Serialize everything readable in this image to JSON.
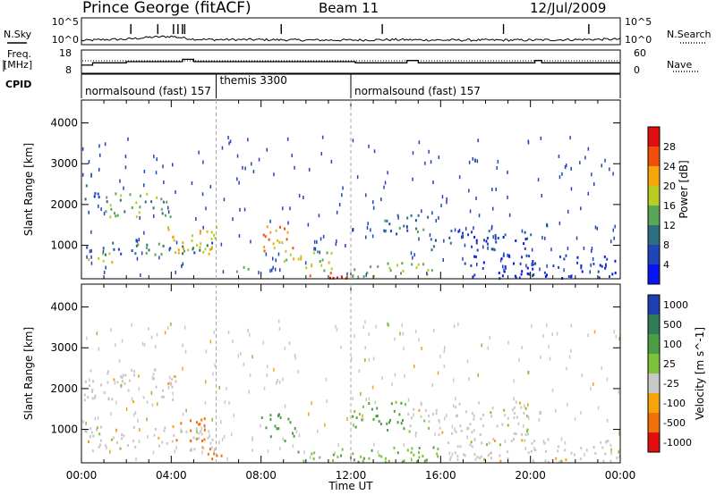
{
  "header": {
    "station": "Prince George (fitACF)",
    "beam": "Beam 11",
    "date": "12/Jul/2009"
  },
  "noise_panel": {
    "left_label": "N.Sky",
    "right_label": "N.Search",
    "left_ticks": [
      "10^5",
      "10^0"
    ],
    "right_ticks": [
      "10^5",
      "10^0"
    ]
  },
  "freq_panel": {
    "left_label_1": "Freq.",
    "left_label_2": "[MHz]",
    "right_label": "Nave",
    "left_ticks": [
      "18",
      "8"
    ],
    "right_ticks": [
      "60",
      "0"
    ]
  },
  "cpid": {
    "label": "CPID",
    "segments": [
      {
        "name": "normalsound (fast) 157",
        "start": 0,
        "end": 6
      },
      {
        "name": "themis 3300",
        "start": 6,
        "end": 12
      },
      {
        "name": "normalsound (fast) 157",
        "start": 12,
        "end": 24
      }
    ]
  },
  "x_axis": {
    "label": "Time UT",
    "ticks": [
      "00:00",
      "04:00",
      "08:00",
      "12:00",
      "16:00",
      "20:00",
      "00:00"
    ],
    "tick_hours": [
      0,
      4,
      8,
      12,
      16,
      20,
      24
    ]
  },
  "y_axis": {
    "label": "Slant Range [km]",
    "ticks": [
      "1000",
      "2000",
      "3000",
      "4000"
    ],
    "tick_values": [
      1000,
      2000,
      3000,
      4000
    ],
    "range": [
      180,
      4560
    ]
  },
  "power_colorbar": {
    "label": "Power [dB]",
    "ticks": [
      "4",
      "8",
      "12",
      "16",
      "20",
      "24",
      "28"
    ],
    "colors": [
      "#0a16f0",
      "#1f45b8",
      "#2f6e80",
      "#58a656",
      "#b8cc22",
      "#f6a60c",
      "#f0500c",
      "#e00f0f"
    ]
  },
  "velocity_colorbar": {
    "label": "Velocity [m s^-1]",
    "ticks": [
      "1000",
      "500",
      "100",
      "25",
      "-25",
      "-100",
      "-500",
      "-1000"
    ],
    "colors": [
      "#1f3fb0",
      "#2f7c56",
      "#4f9c46",
      "#7cc23a",
      "#c8c8c8",
      "#f6a40c",
      "#f0700c",
      "#e01010"
    ]
  },
  "chart_data": [
    {
      "type": "line",
      "title": "N.Sky / N.Search",
      "x": [
        0,
        1,
        2,
        3,
        4,
        5,
        6,
        8,
        10,
        12,
        14,
        16,
        18,
        20,
        22,
        24
      ],
      "series": [
        {
          "name": "N.Sky",
          "values": [
            0.5,
            0.7,
            0.8,
            1.2,
            1.4,
            0.8,
            0.7,
            0.7,
            0.6,
            0.6,
            0.7,
            0.6,
            0.6,
            0.6,
            0.7,
            0.8
          ]
        }
      ]
    },
    {
      "type": "line",
      "title": "Freq. / Nave",
      "x": [
        0,
        0.5,
        2,
        4.5,
        5,
        12,
        12.2,
        14.5,
        15,
        18,
        20.2,
        20.5,
        24
      ],
      "series": [
        {
          "name": "Freq. [MHz]",
          "values": [
            11.5,
            12.5,
            13,
            14,
            13,
            13,
            12.5,
            13.5,
            12.5,
            12.5,
            13.5,
            12.5,
            12.5
          ]
        }
      ]
    },
    {
      "type": "heatmap",
      "title": "Power [dB]",
      "x_unit": "hours UT",
      "y_unit": "km",
      "features": [
        {
          "t0": 0.1,
          "t1": 1,
          "r0": 2100,
          "r1": 2500,
          "power": 6
        },
        {
          "t0": 1,
          "t1": 4.2,
          "r0": 1700,
          "r1": 2300,
          "power": 14
        },
        {
          "t0": 0.1,
          "t1": 6,
          "r0": 800,
          "r1": 1100,
          "power": 10
        },
        {
          "t0": 0.1,
          "t1": 1.5,
          "r0": 600,
          "r1": 850,
          "power": 18
        },
        {
          "t0": 3.8,
          "t1": 6,
          "r0": 700,
          "r1": 1500,
          "power": 20
        },
        {
          "t0": 6.5,
          "t1": 7.5,
          "r0": 300,
          "r1": 500,
          "power": 12
        },
        {
          "t0": 8,
          "t1": 9.5,
          "r0": 800,
          "r1": 1500,
          "power": 22
        },
        {
          "t0": 9,
          "t1": 11.5,
          "r0": 400,
          "r1": 900,
          "power": 18
        },
        {
          "t0": 10,
          "t1": 12,
          "r0": 220,
          "r1": 450,
          "power": 28
        },
        {
          "t0": 12,
          "t1": 16,
          "r0": 250,
          "r1": 600,
          "power": 16
        },
        {
          "t0": 13,
          "t1": 15.5,
          "r0": 1300,
          "r1": 1800,
          "power": 10
        },
        {
          "t0": 15.5,
          "t1": 20,
          "r0": 900,
          "r1": 1400,
          "power": 6
        },
        {
          "t0": 17,
          "t1": 24,
          "r0": 220,
          "r1": 800,
          "power": 4
        }
      ]
    },
    {
      "type": "heatmap",
      "title": "Velocity [m s^-1]",
      "x_unit": "hours UT",
      "y_unit": "km",
      "features": [
        {
          "t0": 0.1,
          "t1": 4.2,
          "r0": 1700,
          "r1": 2500,
          "velocity": 0
        },
        {
          "t0": 0.1,
          "t1": 6,
          "r0": 500,
          "r1": 1100,
          "velocity": 0
        },
        {
          "t0": 4,
          "t1": 5.5,
          "r0": 700,
          "r1": 1300,
          "velocity": -300
        },
        {
          "t0": 5.5,
          "t1": 6.5,
          "r0": 250,
          "r1": 600,
          "velocity": -150
        },
        {
          "t0": 8,
          "t1": 9.5,
          "r0": 700,
          "r1": 1400,
          "velocity": 150
        },
        {
          "t0": 9,
          "t1": 16,
          "r0": 220,
          "r1": 600,
          "velocity": 80
        },
        {
          "t0": 12,
          "t1": 14.5,
          "r0": 1000,
          "r1": 1700,
          "velocity": 120
        },
        {
          "t0": 14.5,
          "t1": 20,
          "r0": 900,
          "r1": 1700,
          "velocity": 0
        },
        {
          "t0": 16,
          "t1": 24,
          "r0": 220,
          "r1": 800,
          "velocity": 0
        }
      ]
    }
  ]
}
